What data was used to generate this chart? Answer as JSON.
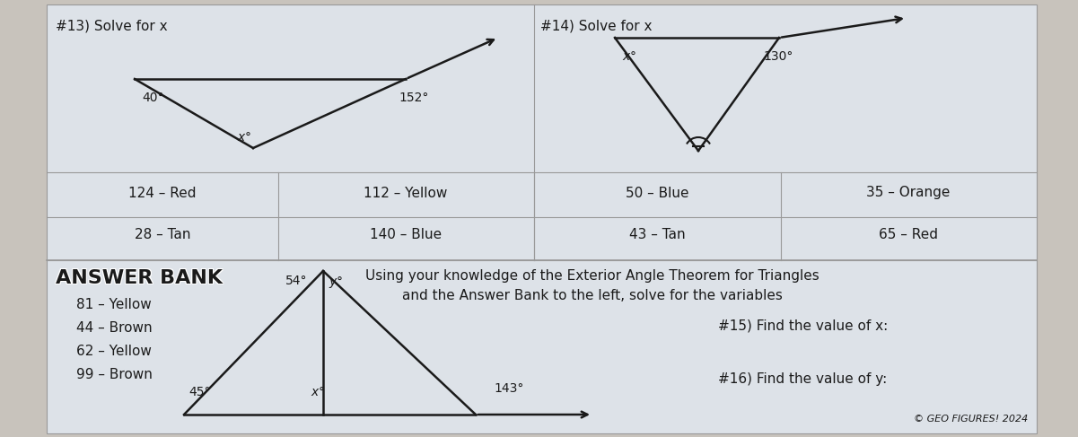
{
  "bg_color": "#c8c3bc",
  "paper_color": "#dde2e8",
  "title13": "#13) Solve for x",
  "title14": "#14) Solve for x",
  "table_entries": [
    [
      "124 – Red",
      "112 – Yellow",
      "50 – Blue",
      "35 – Orange"
    ],
    [
      "28 – Tan",
      "140 – Blue",
      "43 – Tan",
      "65 – Red"
    ]
  ],
  "answer_bank_title": "ANSWER BANK",
  "answer_bank_items": [
    "81 – Yellow",
    "44 – Brown",
    "62 – Yellow",
    "99 – Brown"
  ],
  "instruction_text": "Using your knowledge of the Exterior Angle Theorem for Triangles\nand the Answer Bank to the left, solve for the variables",
  "q15_text": "#15) Find the value of x:",
  "q16_text": "#16) Find the value of y:",
  "copyright": "© GEO FIGURES! 2024",
  "text_color": "#1a1a1a",
  "line_color": "#1a1a1a",
  "grid_color": "#999999"
}
